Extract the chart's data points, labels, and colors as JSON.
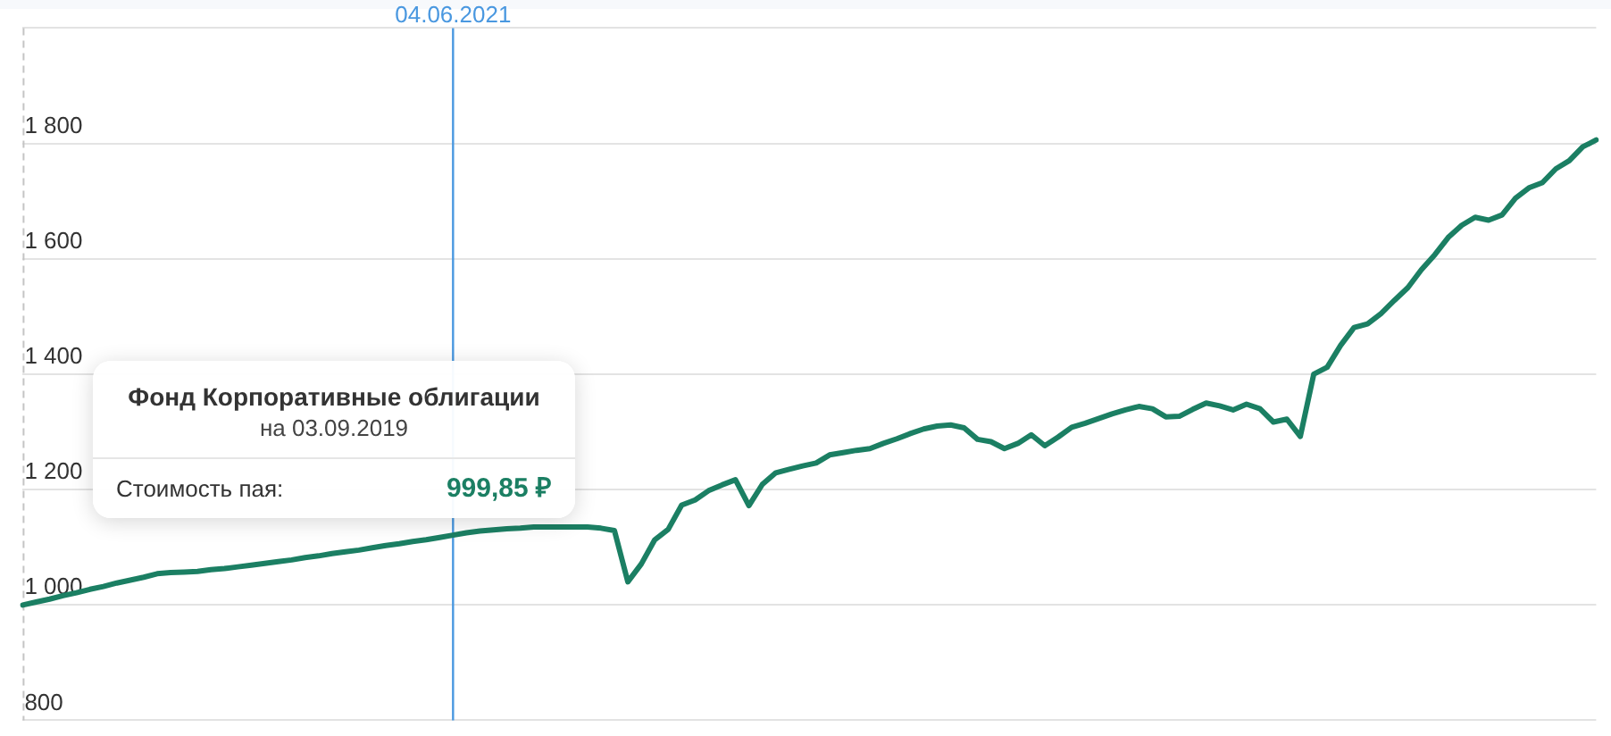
{
  "chart_data": {
    "type": "line",
    "categories": [
      null,
      null,
      null,
      null,
      null,
      null,
      null,
      null,
      null,
      null,
      null,
      null,
      null,
      null,
      null,
      null,
      null,
      null,
      null,
      null,
      null,
      null,
      null,
      null,
      null,
      null,
      null,
      null,
      null,
      null,
      null,
      null,
      "04.06.2021",
      null,
      null,
      null,
      null,
      null,
      null,
      null,
      null,
      null,
      null,
      null,
      null,
      null,
      null,
      null,
      null,
      null,
      null,
      null,
      null,
      null,
      null,
      null,
      null,
      null,
      null,
      null,
      null,
      null,
      null,
      null,
      null,
      null,
      null,
      null,
      null,
      null,
      null,
      null,
      null,
      null,
      null,
      null,
      null,
      null,
      null,
      null,
      null,
      null,
      null,
      null,
      null,
      null,
      null,
      null,
      null,
      null,
      null,
      null,
      null,
      null,
      null,
      null,
      null,
      null,
      null,
      null,
      null,
      null,
      null,
      null,
      null,
      null,
      null,
      null,
      null,
      null,
      null,
      null,
      null,
      null,
      null,
      null,
      null,
      null
    ],
    "series": [
      {
        "color": "#1b7f63",
        "values": [
          999.85,
          1005,
          1010,
          1016,
          1021,
          1027,
          1032,
          1038,
          1043,
          1048,
          1054,
          1056,
          1057,
          1058,
          1061,
          1063,
          1066,
          1069,
          1072,
          1075,
          1078,
          1082,
          1085,
          1089,
          1092,
          1095,
          1099,
          1103,
          1106,
          1110,
          1113,
          1117,
          1121,
          1125,
          1128,
          1130,
          1132,
          1133,
          1135,
          1135,
          1135,
          1135,
          1135,
          1133,
          1129,
          1040,
          1071,
          1113,
          1131,
          1173,
          1182,
          1198,
          1208,
          1217,
          1172,
          1209,
          1229,
          1235,
          1241,
          1246,
          1260,
          1264,
          1268,
          1271,
          1280,
          1288,
          1297,
          1305,
          1310,
          1312,
          1307,
          1287,
          1283,
          1271,
          1280,
          1295,
          1276,
          1291,
          1308,
          1315,
          1323,
          1331,
          1338,
          1344,
          1340,
          1326,
          1327,
          1339,
          1350,
          1345,
          1338,
          1348,
          1340,
          1317,
          1322,
          1292,
          1400,
          1412,
          1450,
          1481,
          1487,
          1505,
          1528,
          1550,
          1581,
          1607,
          1637,
          1658,
          1672,
          1667,
          1676,
          1705,
          1723,
          1732,
          1756,
          1770,
          1794,
          1806
        ]
      }
    ],
    "ylim": [
      800,
      2000
    ],
    "yticks": [
      800,
      {
        "value": 1000,
        "label": "1 000"
      },
      {
        "value": 1200,
        "label": "1 200"
      },
      {
        "value": 1400,
        "label": "1 400"
      },
      {
        "value": 1600,
        "label": "1 600"
      },
      {
        "value": 1800,
        "label": "1 800"
      },
      {
        "value": 2000,
        "label": null
      }
    ],
    "grid": "y",
    "marker": "none",
    "ref_lines": [
      {
        "axis": "x",
        "value": "04.06.2021",
        "color": "#4a98e0"
      }
    ],
    "annotations": [
      "Фонд Корпоративные облигации",
      "на 03.09.2019",
      "Стоимость пая:",
      "999,85 ₽"
    ]
  }
}
